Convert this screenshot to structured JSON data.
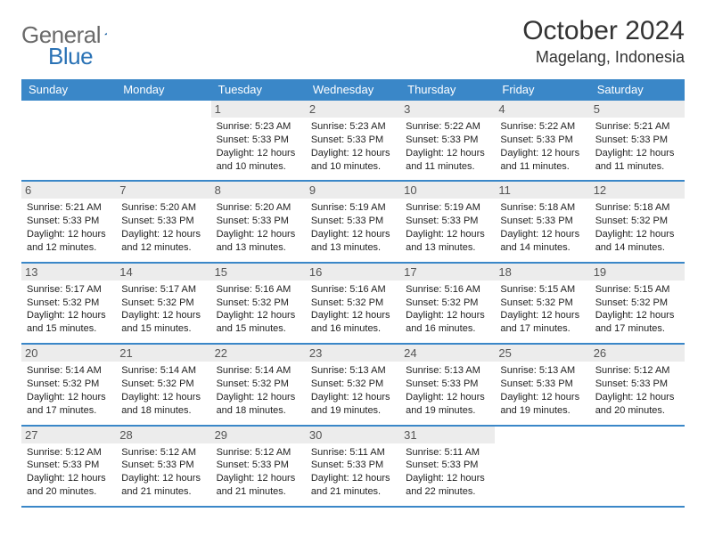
{
  "logo": {
    "part1": "General",
    "part2": "Blue"
  },
  "title": "October 2024",
  "location": "Magelang, Indonesia",
  "colors": {
    "brand_blue": "#3a87c8",
    "logo_gray": "#6a6a6a",
    "logo_blue": "#2a72b5",
    "day_header_bg": "#ececec",
    "text": "#222222",
    "bg": "#ffffff"
  },
  "daysOfWeek": [
    "Sunday",
    "Monday",
    "Tuesday",
    "Wednesday",
    "Thursday",
    "Friday",
    "Saturday"
  ],
  "weeks": [
    [
      null,
      null,
      {
        "n": "1",
        "sr": "5:23 AM",
        "ss": "5:33 PM",
        "dl": "12 hours and 10 minutes."
      },
      {
        "n": "2",
        "sr": "5:23 AM",
        "ss": "5:33 PM",
        "dl": "12 hours and 10 minutes."
      },
      {
        "n": "3",
        "sr": "5:22 AM",
        "ss": "5:33 PM",
        "dl": "12 hours and 11 minutes."
      },
      {
        "n": "4",
        "sr": "5:22 AM",
        "ss": "5:33 PM",
        "dl": "12 hours and 11 minutes."
      },
      {
        "n": "5",
        "sr": "5:21 AM",
        "ss": "5:33 PM",
        "dl": "12 hours and 11 minutes."
      }
    ],
    [
      {
        "n": "6",
        "sr": "5:21 AM",
        "ss": "5:33 PM",
        "dl": "12 hours and 12 minutes."
      },
      {
        "n": "7",
        "sr": "5:20 AM",
        "ss": "5:33 PM",
        "dl": "12 hours and 12 minutes."
      },
      {
        "n": "8",
        "sr": "5:20 AM",
        "ss": "5:33 PM",
        "dl": "12 hours and 13 minutes."
      },
      {
        "n": "9",
        "sr": "5:19 AM",
        "ss": "5:33 PM",
        "dl": "12 hours and 13 minutes."
      },
      {
        "n": "10",
        "sr": "5:19 AM",
        "ss": "5:33 PM",
        "dl": "12 hours and 13 minutes."
      },
      {
        "n": "11",
        "sr": "5:18 AM",
        "ss": "5:33 PM",
        "dl": "12 hours and 14 minutes."
      },
      {
        "n": "12",
        "sr": "5:18 AM",
        "ss": "5:32 PM",
        "dl": "12 hours and 14 minutes."
      }
    ],
    [
      {
        "n": "13",
        "sr": "5:17 AM",
        "ss": "5:32 PM",
        "dl": "12 hours and 15 minutes."
      },
      {
        "n": "14",
        "sr": "5:17 AM",
        "ss": "5:32 PM",
        "dl": "12 hours and 15 minutes."
      },
      {
        "n": "15",
        "sr": "5:16 AM",
        "ss": "5:32 PM",
        "dl": "12 hours and 15 minutes."
      },
      {
        "n": "16",
        "sr": "5:16 AM",
        "ss": "5:32 PM",
        "dl": "12 hours and 16 minutes."
      },
      {
        "n": "17",
        "sr": "5:16 AM",
        "ss": "5:32 PM",
        "dl": "12 hours and 16 minutes."
      },
      {
        "n": "18",
        "sr": "5:15 AM",
        "ss": "5:32 PM",
        "dl": "12 hours and 17 minutes."
      },
      {
        "n": "19",
        "sr": "5:15 AM",
        "ss": "5:32 PM",
        "dl": "12 hours and 17 minutes."
      }
    ],
    [
      {
        "n": "20",
        "sr": "5:14 AM",
        "ss": "5:32 PM",
        "dl": "12 hours and 17 minutes."
      },
      {
        "n": "21",
        "sr": "5:14 AM",
        "ss": "5:32 PM",
        "dl": "12 hours and 18 minutes."
      },
      {
        "n": "22",
        "sr": "5:14 AM",
        "ss": "5:32 PM",
        "dl": "12 hours and 18 minutes."
      },
      {
        "n": "23",
        "sr": "5:13 AM",
        "ss": "5:32 PM",
        "dl": "12 hours and 19 minutes."
      },
      {
        "n": "24",
        "sr": "5:13 AM",
        "ss": "5:33 PM",
        "dl": "12 hours and 19 minutes."
      },
      {
        "n": "25",
        "sr": "5:13 AM",
        "ss": "5:33 PM",
        "dl": "12 hours and 19 minutes."
      },
      {
        "n": "26",
        "sr": "5:12 AM",
        "ss": "5:33 PM",
        "dl": "12 hours and 20 minutes."
      }
    ],
    [
      {
        "n": "27",
        "sr": "5:12 AM",
        "ss": "5:33 PM",
        "dl": "12 hours and 20 minutes."
      },
      {
        "n": "28",
        "sr": "5:12 AM",
        "ss": "5:33 PM",
        "dl": "12 hours and 21 minutes."
      },
      {
        "n": "29",
        "sr": "5:12 AM",
        "ss": "5:33 PM",
        "dl": "12 hours and 21 minutes."
      },
      {
        "n": "30",
        "sr": "5:11 AM",
        "ss": "5:33 PM",
        "dl": "12 hours and 21 minutes."
      },
      {
        "n": "31",
        "sr": "5:11 AM",
        "ss": "5:33 PM",
        "dl": "12 hours and 22 minutes."
      },
      null,
      null
    ]
  ],
  "labels": {
    "sunrise": "Sunrise: ",
    "sunset": "Sunset: ",
    "daylight": "Daylight: "
  }
}
